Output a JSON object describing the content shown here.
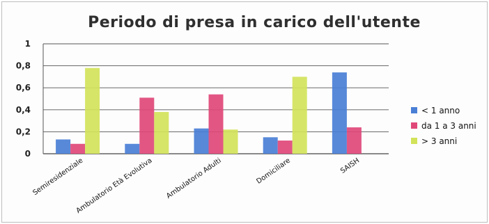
{
  "chart_data": {
    "type": "bar",
    "title": "Periodo di presa in carico dell'utente",
    "xlabel": "",
    "ylabel": "",
    "ylim": [
      0,
      1
    ],
    "yticks": [
      "0",
      "0,2",
      "0,4",
      "0,6",
      "0,8",
      "1"
    ],
    "grid": true,
    "legend_position": "right",
    "categories": [
      "Semiresidenziale",
      "Ambulatorio Età Evolutiva",
      "Ambulatorio Adulti",
      "Domiciliare",
      "SAISH"
    ],
    "series": [
      {
        "name": "< 1 anno",
        "color": "#4a7fd6",
        "values": [
          0.13,
          0.09,
          0.23,
          0.15,
          0.74
        ]
      },
      {
        "name": "da 1 a 3 anni",
        "color": "#e0487a",
        "values": [
          0.09,
          0.51,
          0.54,
          0.12,
          0.24
        ]
      },
      {
        "name": "> 3 anni",
        "color": "#d2e35a",
        "values": [
          0.78,
          0.38,
          0.22,
          0.7,
          0
        ]
      }
    ]
  }
}
